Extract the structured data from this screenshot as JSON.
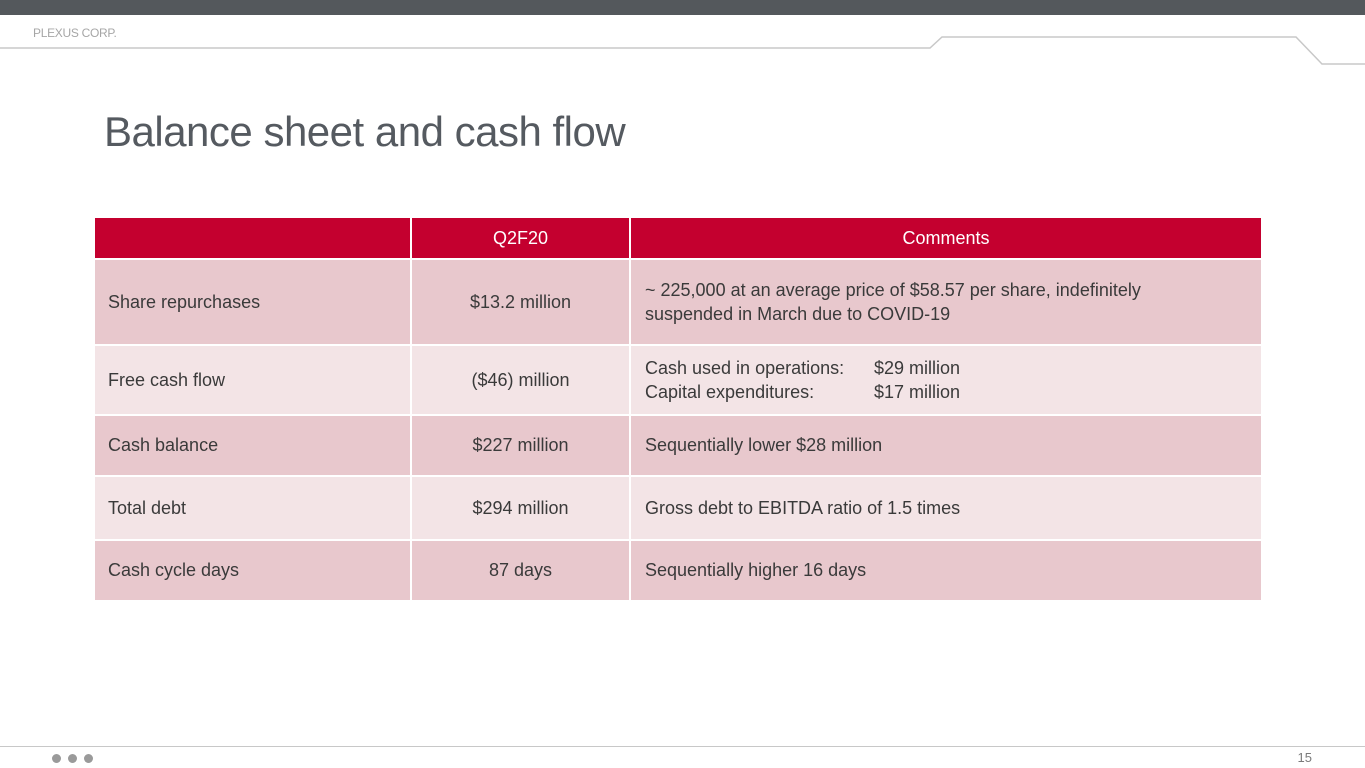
{
  "brand": "PLEXUS CORP.",
  "title": "Balance sheet and cash flow",
  "table": {
    "headers": [
      "",
      "Q2F20",
      "Comments"
    ],
    "rows": [
      {
        "label": "Share repurchases",
        "value": "$13.2 million",
        "comment_lines": [
          "~ 225,000 at an average price of $58.57 per share, indefinitely",
          "suspended in March due to COVID-19"
        ]
      },
      {
        "label": "Free cash flow",
        "value": "($46) million",
        "comment_pairs": [
          {
            "k": "Cash used in operations:",
            "v": "$29 million"
          },
          {
            "k": "Capital expenditures:",
            "v": "$17 million"
          }
        ]
      },
      {
        "label": "Cash balance",
        "value": "$227 million",
        "comment": "Sequentially lower $28 million"
      },
      {
        "label": "Total debt",
        "value": "$294 million",
        "comment": "Gross debt to EBITDA ratio of 1.5 times"
      },
      {
        "label": "Cash cycle days",
        "value": "87 days",
        "comment": "Sequentially higher 16 days"
      }
    ]
  },
  "footer": {
    "page_number": "15"
  },
  "colors": {
    "header_red": "#c4002f",
    "row_dark": "#e8c8cd",
    "row_light": "#f3e4e6",
    "top_bar": "#54585c"
  }
}
